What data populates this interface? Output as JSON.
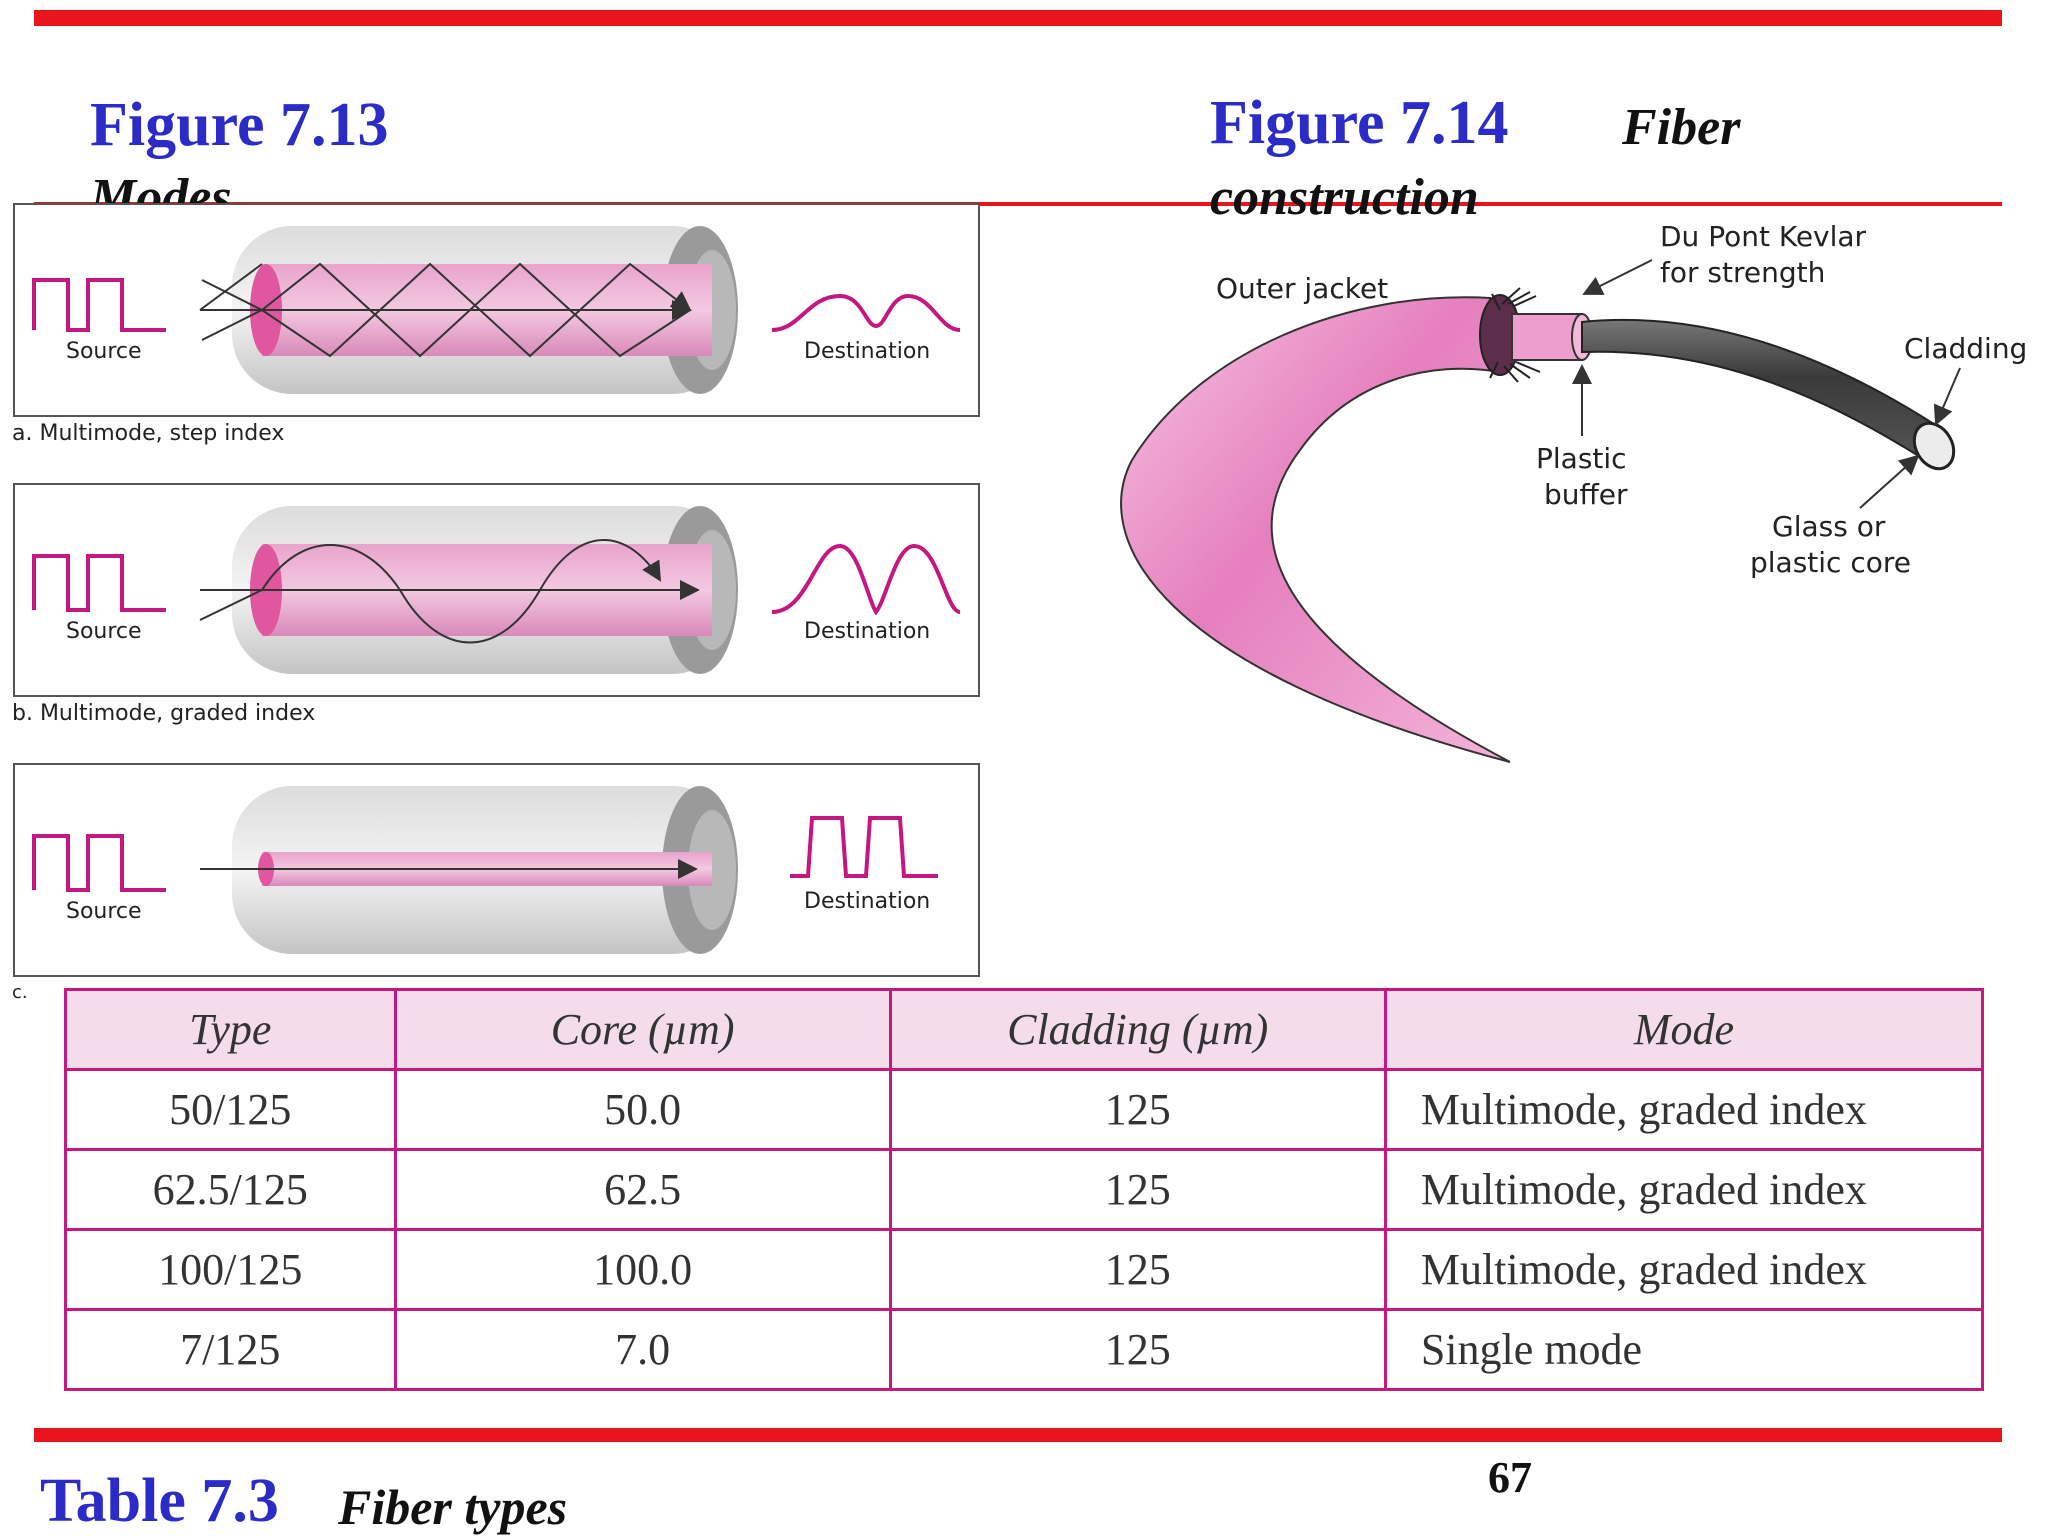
{
  "figure_modes": {
    "number": "Figure 7.13",
    "caption": "Modes",
    "panels": [
      {
        "caption": "a. Multimode, step index",
        "source_label": "Source",
        "destination_label": "Destination"
      },
      {
        "caption": "b. Multimode, graded index",
        "source_label": "Source",
        "destination_label": "Destination"
      },
      {
        "caption": "c.",
        "source_label": "Source",
        "destination_label": "Destination"
      }
    ]
  },
  "figure_construction": {
    "number": "Figure 7.14",
    "caption_line1": "Fiber",
    "caption_line2": "construction",
    "labels": {
      "outer_jacket": "Outer jacket",
      "kevlar_1": "Du Pont Kevlar",
      "kevlar_2": "for strength",
      "cladding": "Cladding",
      "buffer_1": "Plastic",
      "buffer_2": "buffer",
      "core_1": "Glass or",
      "core_2": "plastic core"
    }
  },
  "table": {
    "number": "Table 7.3",
    "caption": "Fiber types",
    "headers": [
      "Type",
      "Core (µm)",
      "Cladding (µm)",
      "Mode"
    ],
    "rows": [
      [
        "50/125",
        "50.0",
        "125",
        "Multimode, graded index"
      ],
      [
        "62.5/125",
        "62.5",
        "125",
        "Multimode, graded index"
      ],
      [
        "100/125",
        "100.0",
        "125",
        "Multimode, graded index"
      ],
      [
        "7/125",
        "7.0",
        "125",
        "Single mode"
      ]
    ]
  },
  "page_number": "67",
  "colors": {
    "accent_red": "#e8141e",
    "title_blue": "#2b2bc8",
    "table_border": "#c4177f",
    "table_header_bg": "#f5dcea",
    "fiber_pink": "#e986c3"
  }
}
